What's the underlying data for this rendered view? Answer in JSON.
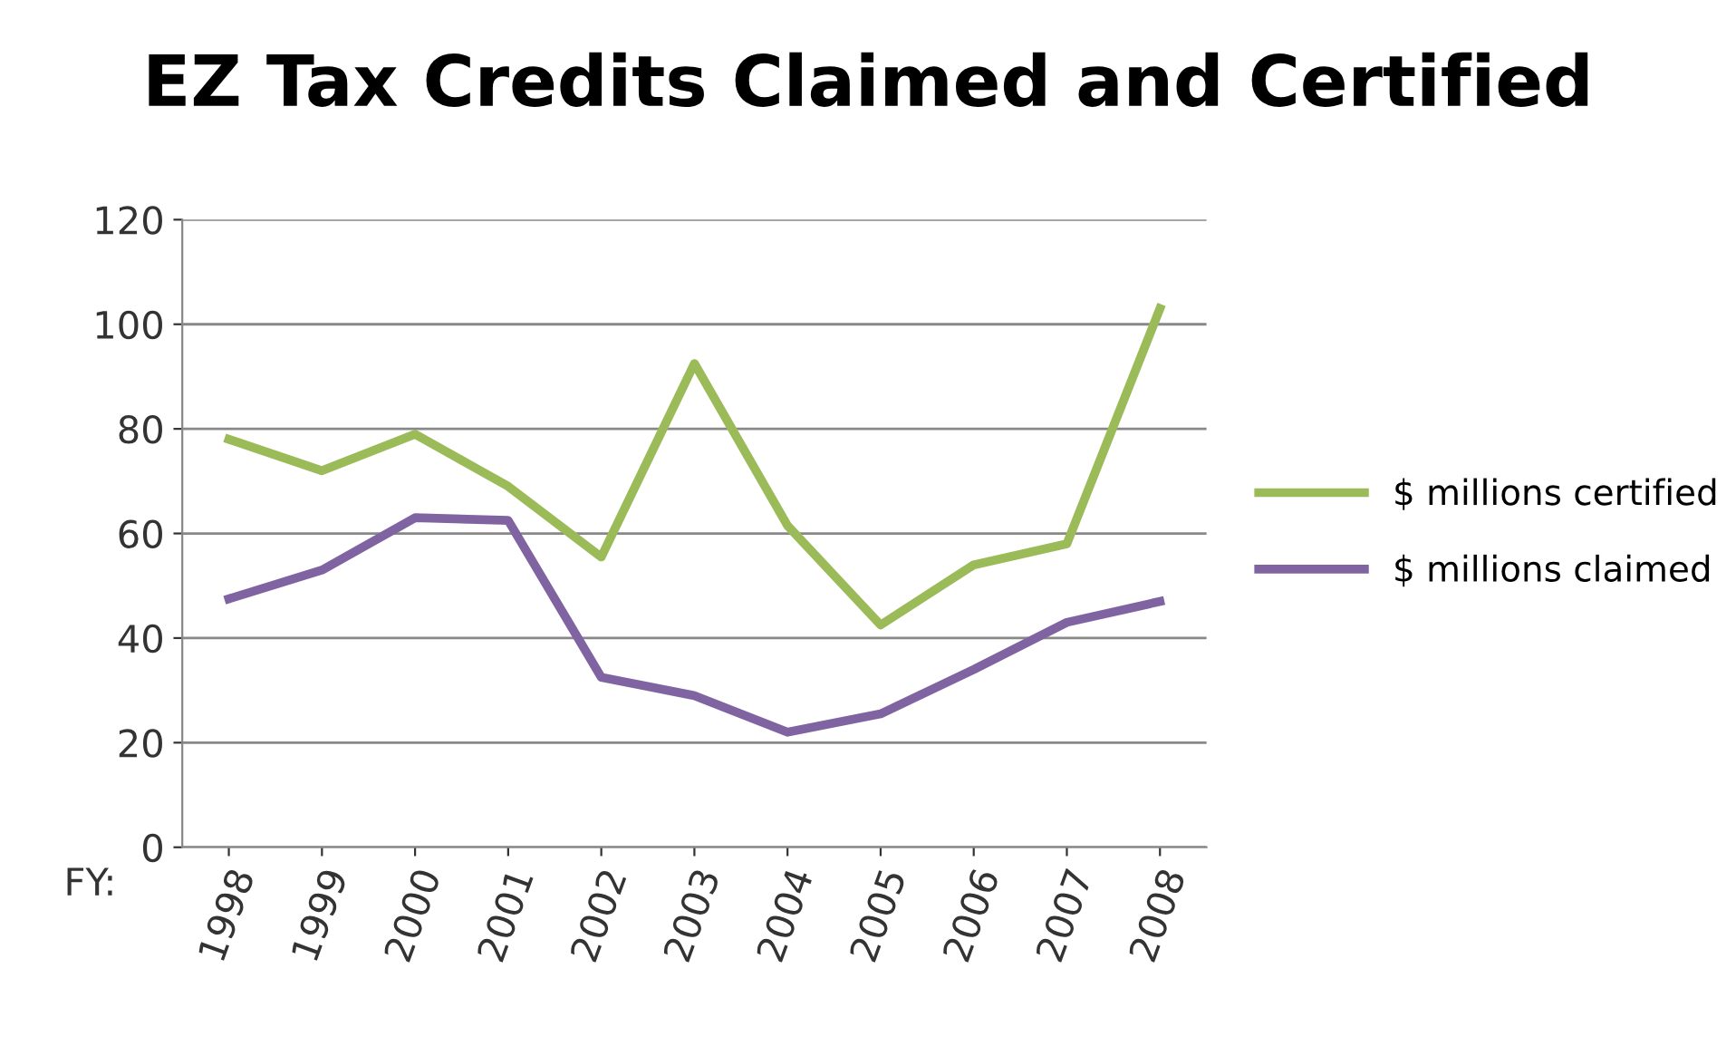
{
  "chart_data": {
    "type": "line",
    "title": "EZ Tax Credits Claimed and Certified",
    "xlabel": "FY:",
    "categories": [
      "1998",
      "1999",
      "2000",
      "2001",
      "2002",
      "2003",
      "2004",
      "2005",
      "2006",
      "2007",
      "2008"
    ],
    "series": [
      {
        "name": "$ millions certified",
        "color": "#9bbb59",
        "values": [
          78,
          72,
          79,
          69,
          55.5,
          92.5,
          61.5,
          42.5,
          54,
          58,
          103
        ]
      },
      {
        "name": "$ millions claimed",
        "color": "#8064a2",
        "values": [
          47.5,
          53,
          63,
          62.5,
          32.5,
          29,
          22,
          25.5,
          34,
          43,
          47
        ]
      }
    ],
    "ylim": [
      0,
      120
    ],
    "yticks": [
      0,
      20,
      40,
      60,
      80,
      100,
      120
    ],
    "grid": "y",
    "legend": "right",
    "marker": "none",
    "line_style": "solid"
  }
}
